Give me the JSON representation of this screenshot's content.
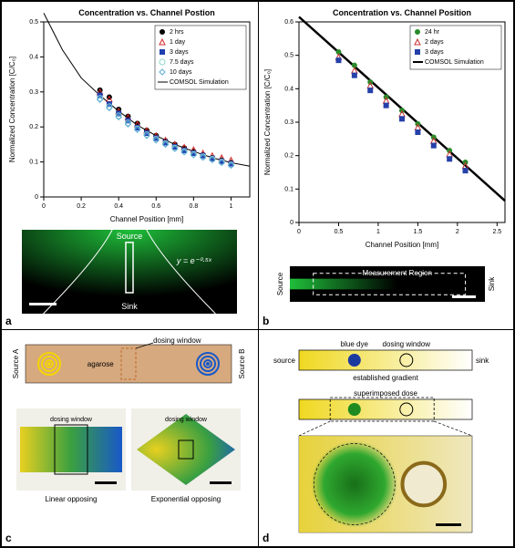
{
  "panel_a": {
    "label": "a",
    "chart": {
      "type": "scatter+line",
      "title": "Concentration vs. Channel Postion",
      "title_fontsize": 9,
      "xlabel": "Channel Position [mm]",
      "ylabel": "Normalized Concentration [C/C₀]",
      "label_fontsize": 8,
      "xlim": [
        0,
        1.1
      ],
      "ylim": [
        0,
        0.5
      ],
      "xtick_step": 0.2,
      "ytick_step": 0.1,
      "tick_fontsize": 7,
      "series_colors": {
        "2 hrs": "#000000",
        "1 day": "#d62728",
        "3 days": "#1f3fb0",
        "7.5 days": "#8fd6cc",
        "10 days": "#5aa9d6"
      },
      "series_markers": {
        "2 hrs": "circle-filled",
        "1 day": "triangle-open",
        "3 days": "square-filled",
        "7.5 days": "circle-open",
        "10 days": "diamond-open"
      },
      "sim_label": "COMSOL Simulation",
      "sim_color": "#000000",
      "data_2hrs": {
        "x": [
          0.3,
          0.35,
          0.4,
          0.45,
          0.5,
          0.55,
          0.6,
          0.65,
          0.7,
          0.75,
          0.8,
          0.85,
          0.9,
          0.95,
          1.0
        ],
        "y": [
          0.305,
          0.285,
          0.25,
          0.23,
          0.21,
          0.19,
          0.175,
          0.16,
          0.15,
          0.14,
          0.13,
          0.12,
          0.112,
          0.105,
          0.098
        ]
      },
      "data_1day": {
        "x": [
          0.3,
          0.35,
          0.4,
          0.45,
          0.5,
          0.55,
          0.6,
          0.65,
          0.7,
          0.75,
          0.8,
          0.85,
          0.9,
          0.95,
          1.0
        ],
        "y": [
          0.3,
          0.28,
          0.245,
          0.228,
          0.208,
          0.19,
          0.175,
          0.162,
          0.15,
          0.142,
          0.135,
          0.125,
          0.118,
          0.112,
          0.105
        ]
      },
      "data_3days": {
        "x": [
          0.3,
          0.35,
          0.4,
          0.45,
          0.5,
          0.55,
          0.6,
          0.65,
          0.7,
          0.75,
          0.8,
          0.85,
          0.9,
          0.95,
          1.0
        ],
        "y": [
          0.29,
          0.265,
          0.238,
          0.218,
          0.198,
          0.182,
          0.168,
          0.155,
          0.143,
          0.133,
          0.125,
          0.118,
          0.11,
          0.102,
          0.095
        ]
      },
      "data_75days": {
        "x": [
          0.3,
          0.35,
          0.4,
          0.45,
          0.5,
          0.55,
          0.6,
          0.65,
          0.7,
          0.75,
          0.8,
          0.85,
          0.9,
          0.95,
          1.0
        ],
        "y": [
          0.282,
          0.258,
          0.232,
          0.212,
          0.195,
          0.178,
          0.165,
          0.152,
          0.14,
          0.13,
          0.122,
          0.115,
          0.108,
          0.1,
          0.092
        ]
      },
      "data_10days": {
        "x": [
          0.3,
          0.35,
          0.4,
          0.45,
          0.5,
          0.55,
          0.6,
          0.65,
          0.7,
          0.75,
          0.8,
          0.85,
          0.9,
          0.95,
          1.0
        ],
        "y": [
          0.278,
          0.254,
          0.228,
          0.208,
          0.192,
          0.175,
          0.162,
          0.15,
          0.138,
          0.128,
          0.12,
          0.113,
          0.106,
          0.098,
          0.09
        ]
      },
      "sim_curve": {
        "x": [
          0.0,
          0.1,
          0.2,
          0.3,
          0.4,
          0.5,
          0.6,
          0.7,
          0.8,
          0.9,
          1.0,
          1.1
        ],
        "y": [
          0.525,
          0.42,
          0.34,
          0.29,
          0.245,
          0.205,
          0.175,
          0.15,
          0.13,
          0.112,
          0.098,
          0.088
        ]
      }
    },
    "photo": {
      "bg": "#000000",
      "glow": "#1fbf3a",
      "source_label": "Source",
      "sink_label": "Sink",
      "eq_label": "y = e⁻⁰·⁵ˣ",
      "text_color": "#ffffff",
      "scalebar_color": "#ffffff"
    }
  },
  "panel_b": {
    "label": "b",
    "chart": {
      "type": "scatter+line",
      "title": "Concentration vs. Channel Position",
      "title_fontsize": 9,
      "xlabel": "Channel Position [mm]",
      "ylabel": "Normalized Concentration [C/C₀]",
      "label_fontsize": 8,
      "xlim": [
        0,
        2.6
      ],
      "ylim": [
        0,
        0.6
      ],
      "xtick_step": 0.5,
      "ytick_step": 0.1,
      "tick_fontsize": 7,
      "series_colors": {
        "24 hr": "#2a8a2a",
        "2 days": "#c93030",
        "3 days": "#2540a8"
      },
      "series_markers": {
        "24 hr": "circle-filled",
        "2 days": "triangle-open",
        "3 days": "square-filled"
      },
      "sim_label": "COMSOL Simulation",
      "sim_color": "#000000",
      "data_24hr": {
        "x": [
          0.5,
          0.7,
          0.9,
          1.1,
          1.3,
          1.5,
          1.7,
          1.9,
          2.1
        ],
        "y": [
          0.51,
          0.47,
          0.42,
          0.375,
          0.335,
          0.295,
          0.255,
          0.215,
          0.18
        ]
      },
      "data_2d": {
        "x": [
          0.5,
          0.7,
          0.9,
          1.1,
          1.3,
          1.5,
          1.7,
          1.9,
          2.1
        ],
        "y": [
          0.495,
          0.455,
          0.41,
          0.365,
          0.325,
          0.285,
          0.245,
          0.205,
          0.17
        ]
      },
      "data_3d": {
        "x": [
          0.5,
          0.7,
          0.9,
          1.1,
          1.3,
          1.5,
          1.7,
          1.9,
          2.1
        ],
        "y": [
          0.485,
          0.44,
          0.395,
          0.35,
          0.31,
          0.27,
          0.23,
          0.19,
          0.155
        ]
      },
      "sim_line": {
        "x": [
          0.0,
          2.6
        ],
        "y": [
          0.615,
          0.065
        ]
      }
    },
    "photo": {
      "bg": "#000000",
      "source_label": "Source",
      "sink_label": "Sink",
      "region_label": "Measurement Region",
      "text_color": "#ffffff",
      "green": "#1fbf3a",
      "scalebar_color": "#ffffff"
    }
  },
  "panel_c": {
    "label": "c",
    "diagram": {
      "agarose_color": "#d6a97f",
      "agarose_label": "agarose",
      "dosing_label": "dosing window",
      "sourceA_label": "Source A",
      "sourceB_label": "Source B",
      "yellow": "#f5d400",
      "blue": "#1858c9",
      "dash_color": "#c06a2a"
    },
    "photo_linear": {
      "label": "Linear opposing",
      "dosing_label": "dosing window",
      "yellow": "#e8d020",
      "green": "#3aa040",
      "blue": "#1858c9",
      "bg": "#f0efe8",
      "scalebar_color": "#000000"
    },
    "photo_exp": {
      "label": "Exponential opposing",
      "dosing_label": "dosing window",
      "yellow": "#e8d020",
      "green": "#3aa040",
      "blue": "#1858c9",
      "bg": "#f0efe8",
      "scalebar_color": "#000000"
    }
  },
  "panel_d": {
    "label": "d",
    "top": {
      "source_label": "source",
      "sink_label": "sink",
      "blue_label": "blue dye",
      "dosing_label": "dosing window",
      "gradient_label": "established gradient",
      "yellow": "#efd820",
      "white": "#ffffff",
      "blue": "#1b3aa0"
    },
    "mid": {
      "label": "superimposed dose",
      "yellow": "#efd820",
      "white": "#ffffff",
      "green": "#1f8a1f",
      "dash_color": "#000000"
    },
    "photo": {
      "bg": "#f0ead0",
      "yellow": "#e6cf2a",
      "green": "#186f18",
      "green_glow": "#2fa82f",
      "brown": "#8a6a1a",
      "scalebar_color": "#000000"
    }
  }
}
